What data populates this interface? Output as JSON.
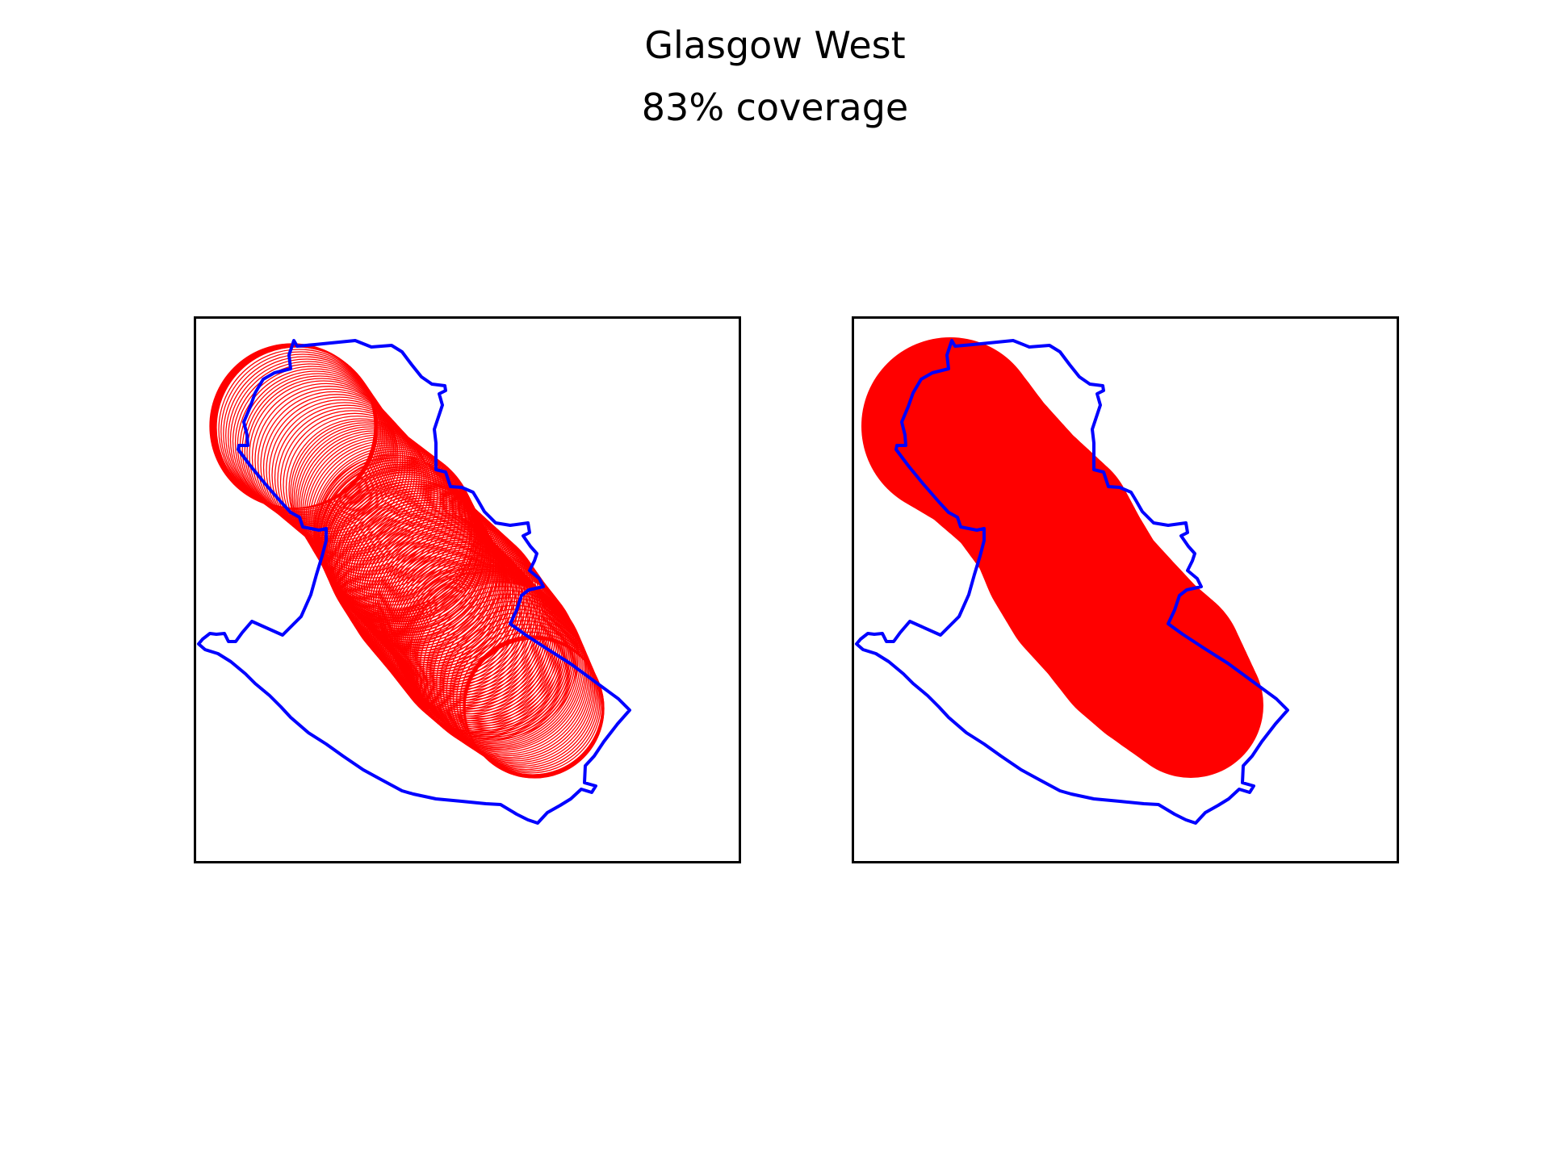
{
  "figure": {
    "title": "Glasgow West",
    "subtitle": "83% coverage"
  },
  "panels": [
    {
      "style": "outline-circles"
    },
    {
      "style": "filled-union"
    }
  ],
  "colors": {
    "boundary": "#0000ff",
    "coverage": "#ff0000",
    "frame": "#000000",
    "background": "#ffffff"
  },
  "coverage_percent": 83
}
